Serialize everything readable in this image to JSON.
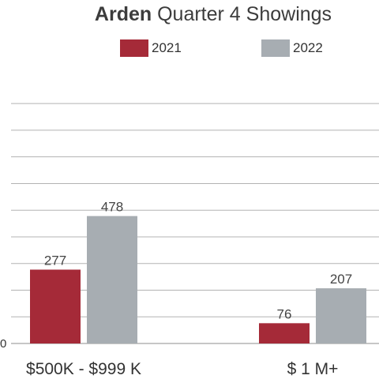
{
  "title_bold": "Arden",
  "title_rest": " Quarter 4 Showings",
  "legend": [
    {
      "label": "2021",
      "color": "#a52a38"
    },
    {
      "label": "2022",
      "color": "#a7adb2"
    }
  ],
  "chart_data": {
    "type": "bar",
    "title": "Arden Quarter 4 Showings",
    "categories": [
      "$500K - $999 K",
      "$ 1 M+"
    ],
    "series": [
      {
        "name": "2021",
        "values": [
          277,
          76
        ],
        "color": "#a52a38"
      },
      {
        "name": "2022",
        "values": [
          478,
          207
        ],
        "color": "#a7adb2"
      }
    ],
    "ylim": [
      0,
      1000
    ],
    "y_tick_labels": [
      "0"
    ],
    "grid": true,
    "legend_position": "top"
  }
}
